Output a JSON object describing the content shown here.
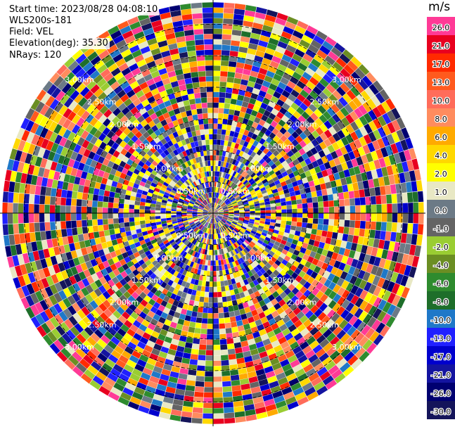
{
  "header": {
    "start_time": "Start time: 2023/08/28 04:08:10",
    "instrument": "WLS200s-181",
    "field": "Field: VEL",
    "elevation": "Elevation(deg): 35.30",
    "nrays": "NRays: 120"
  },
  "colorbar": {
    "unit": "m/s",
    "bins": [
      {
        "label": "26.0",
        "color": "#ff3a96"
      },
      {
        "label": "21.0",
        "color": "#e8001f"
      },
      {
        "label": "17.0",
        "color": "#ff2a00"
      },
      {
        "label": "13.0",
        "color": "#ff5a1e"
      },
      {
        "label": "10.0",
        "color": "#ff6c5a"
      },
      {
        "label": "8.0",
        "color": "#ff8c5e"
      },
      {
        "label": "6.0",
        "color": "#ffaa00"
      },
      {
        "label": "4.0",
        "color": "#ffd800"
      },
      {
        "label": "2.0",
        "color": "#ffff00"
      },
      {
        "label": "1.0",
        "color": "#e8e8c4"
      },
      {
        "label": "0.0",
        "color": "#6c7a86"
      },
      {
        "label": "-1.0",
        "color": "#646464"
      },
      {
        "label": "-2.0",
        "color": "#9acd32"
      },
      {
        "label": "-4.0",
        "color": "#6b8e23"
      },
      {
        "label": "-6.0",
        "color": "#2e8b2e"
      },
      {
        "label": "-8.0",
        "color": "#1e6e2a"
      },
      {
        "label": "-10.0",
        "color": "#1f78c8"
      },
      {
        "label": "-13.0",
        "color": "#2020ff"
      },
      {
        "label": "-17.0",
        "color": "#0000cd"
      },
      {
        "label": "-21.0",
        "color": "#1414a0"
      },
      {
        "label": "-26.0",
        "color": "#000070"
      },
      {
        "label": "-30.0",
        "color": "#14145a"
      }
    ]
  },
  "chart_data": {
    "type": "heatmap",
    "subtype": "polar-ppi",
    "field": "VEL",
    "units": "m/s",
    "nrays": 120,
    "range_rings_km": [
      0.5,
      1.0,
      1.5,
      2.0,
      2.5,
      3.0
    ],
    "range_ring_labels": [
      "0.50km",
      "1.00km",
      "1.50km",
      "2.00km",
      "2.50km",
      "3.00km"
    ],
    "max_range_km": 3.35,
    "range_gates": 40,
    "value_range": [
      -30,
      26
    ],
    "crosshair_lines": true
  }
}
